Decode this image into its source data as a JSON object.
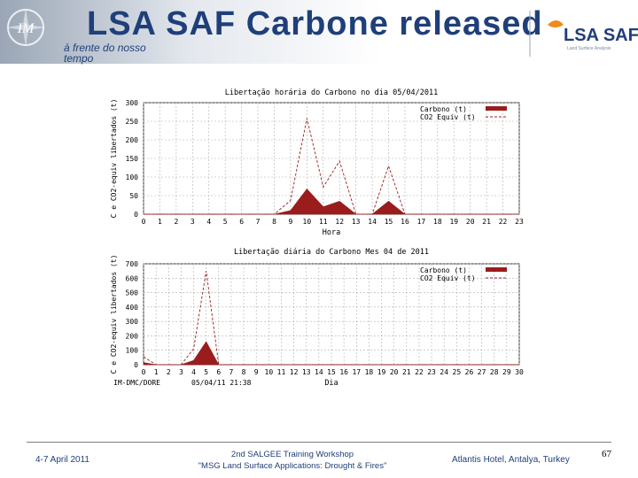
{
  "header": {
    "title": "LSA SAF Carbone released",
    "subtitle": "à frente do nosso tempo",
    "logo_left": "IM",
    "logo_right": "LSA SAF",
    "logo_right_small": "Land Surface Analysis",
    "colors": {
      "title": "#1f3f7a",
      "accent": "#f08a1a"
    }
  },
  "footer": {
    "date": "4-7 April 2011",
    "workshop_line1": "2nd SALGEE Training Workshop",
    "workshop_line2": "\"MSG Land Surface Applications: Drought & Fires\"",
    "venue": "Atlantis Hotel, Antalya, Turkey",
    "page": "67"
  },
  "chart_data": [
    {
      "type": "area",
      "title": "Libertação horária do Carbono no dia 05/04/2011",
      "xlabel": "Hora",
      "ylabel": "C e CO2-equiv libertados (t)",
      "x": [
        0,
        1,
        2,
        3,
        4,
        5,
        6,
        7,
        8,
        9,
        10,
        11,
        12,
        13,
        14,
        15,
        16,
        17,
        18,
        19,
        20,
        21,
        22,
        23
      ],
      "ylim": [
        0,
        300
      ],
      "yticks": [
        0,
        50,
        100,
        150,
        200,
        250,
        300
      ],
      "grid": true,
      "legend_position": "top-right",
      "series": [
        {
          "name": "Carbono (t)",
          "style": "filled",
          "color": "#9b1c1c",
          "values": [
            0,
            0,
            0,
            0,
            0,
            0,
            0,
            0,
            0,
            10,
            68,
            20,
            35,
            0,
            0,
            35,
            0,
            0,
            0,
            0,
            0,
            0,
            0,
            0
          ]
        },
        {
          "name": "CO2 Equiv (t)",
          "style": "dashed",
          "color": "#9b1c1c",
          "values": [
            0,
            0,
            0,
            0,
            0,
            0,
            0,
            0,
            0,
            37,
            258,
            73,
            143,
            0,
            0,
            130,
            0,
            0,
            0,
            0,
            0,
            0,
            0,
            0
          ]
        }
      ]
    },
    {
      "type": "area",
      "title": "Libertação diária do Carbono Mes 04 de 2011",
      "xlabel": "Dia",
      "ylabel": "C e CO2-equiv libertados (t)",
      "x": [
        0,
        1,
        2,
        3,
        4,
        5,
        6,
        7,
        8,
        9,
        10,
        11,
        12,
        13,
        14,
        15,
        16,
        17,
        18,
        19,
        20,
        21,
        22,
        23,
        24,
        25,
        26,
        27,
        28,
        29,
        30
      ],
      "ylim": [
        0,
        700
      ],
      "yticks": [
        0,
        100,
        200,
        300,
        400,
        500,
        600,
        700
      ],
      "grid": true,
      "legend_position": "top-right",
      "footnote_left": "IM-DMC/DORE",
      "footnote_center": "05/04/11 21:38",
      "series": [
        {
          "name": "Carbono (t)",
          "style": "filled",
          "color": "#9b1c1c",
          "values": [
            15,
            0,
            0,
            0,
            30,
            160,
            0,
            0,
            0,
            0,
            0,
            0,
            0,
            0,
            0,
            0,
            0,
            0,
            0,
            0,
            0,
            0,
            0,
            0,
            0,
            0,
            0,
            0,
            0,
            0,
            0
          ]
        },
        {
          "name": "CO2 Equiv (t)",
          "style": "dashed",
          "color": "#9b1c1c",
          "values": [
            55,
            0,
            0,
            0,
            110,
            650,
            0,
            0,
            0,
            0,
            0,
            0,
            0,
            0,
            0,
            0,
            0,
            0,
            0,
            0,
            0,
            0,
            0,
            0,
            0,
            0,
            0,
            0,
            0,
            0,
            0
          ]
        }
      ]
    }
  ]
}
